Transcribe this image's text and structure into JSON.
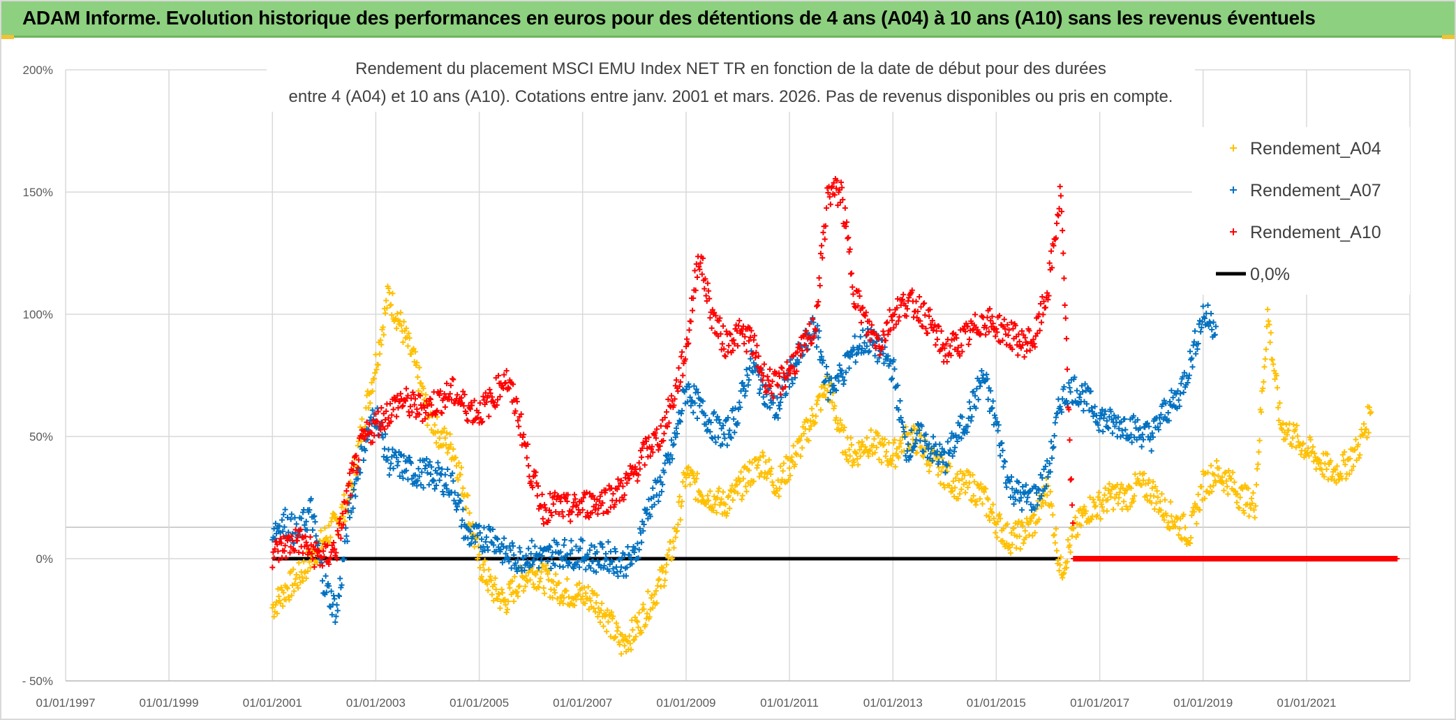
{
  "header": {
    "banner": "ADAM Informe. Evolution historique des performances en euros pour des détentions de 4 ans (A04) à 10 ans (A10) sans les revenus éventuels"
  },
  "colors": {
    "banner_bg": "#8dd07f",
    "accent": "#f1c232",
    "A04": "#ffc000",
    "A07": "#0070c0",
    "A10": "#ff0000",
    "zero_line": "#000000"
  },
  "chart_data": {
    "type": "scatter",
    "title_lines": [
      "Rendement du placement MSCI EMU Index NET TR en fonction de la date de début pour des durées",
      "entre 4 (A04) et 10 ans (A10). Cotations entre janv. 2001 et mars. 2026. Pas de revenus disponibles ou pris en compte."
    ],
    "xlabel": "",
    "ylabel": "",
    "x_ticks": [
      "01/01/1997",
      "01/01/1999",
      "01/01/2001",
      "01/01/2003",
      "01/01/2005",
      "01/01/2007",
      "01/01/2009",
      "01/01/2011",
      "01/01/2013",
      "01/01/2015",
      "01/01/2017",
      "01/01/2019",
      "01/01/2021"
    ],
    "xlim": [
      "1997-01-01",
      "2023-01-01"
    ],
    "y_ticks": [
      "200%",
      "150%",
      "100%",
      "50%",
      "0%",
      "- 50%"
    ],
    "ylim": [
      -50,
      200
    ],
    "grid": true,
    "legend_position": "top-right",
    "legend": [
      "Rendement_A04",
      "Rendement_A07",
      "Rendement_A10",
      "0,0%"
    ],
    "series": [
      {
        "name": "Rendement_A04",
        "color": "#ffc000",
        "points": [
          [
            "2001-01-01",
            -20
          ],
          [
            "2001-04-01",
            -13
          ],
          [
            "2001-07-01",
            -8
          ],
          [
            "2001-10-01",
            0
          ],
          [
            "2002-01-01",
            8
          ],
          [
            "2002-04-01",
            15
          ],
          [
            "2002-07-01",
            25
          ],
          [
            "2002-10-01",
            55
          ],
          [
            "2003-01-01",
            80
          ],
          [
            "2003-04-01",
            108
          ],
          [
            "2003-07-01",
            95
          ],
          [
            "2003-10-01",
            80
          ],
          [
            "2004-01-01",
            60
          ],
          [
            "2004-04-01",
            50
          ],
          [
            "2004-07-01",
            45
          ],
          [
            "2004-10-01",
            25
          ],
          [
            "2005-01-01",
            -2
          ],
          [
            "2005-04-01",
            -12
          ],
          [
            "2005-07-01",
            -18
          ],
          [
            "2005-10-01",
            -10
          ],
          [
            "2006-01-01",
            -5
          ],
          [
            "2006-04-01",
            -8
          ],
          [
            "2006-07-01",
            -12
          ],
          [
            "2006-10-01",
            -14
          ],
          [
            "2007-01-01",
            -15
          ],
          [
            "2007-04-01",
            -17
          ],
          [
            "2007-07-01",
            -25
          ],
          [
            "2007-10-01",
            -35
          ],
          [
            "2008-01-01",
            -30
          ],
          [
            "2008-04-01",
            -20
          ],
          [
            "2008-07-01",
            -10
          ],
          [
            "2008-10-01",
            5
          ],
          [
            "2009-01-01",
            35
          ],
          [
            "2009-04-01",
            28
          ],
          [
            "2009-07-01",
            25
          ],
          [
            "2009-10-01",
            22
          ],
          [
            "2010-01-01",
            28
          ],
          [
            "2010-04-01",
            35
          ],
          [
            "2010-07-01",
            40
          ],
          [
            "2010-10-01",
            30
          ],
          [
            "2011-01-01",
            38
          ],
          [
            "2011-04-01",
            48
          ],
          [
            "2011-07-01",
            60
          ],
          [
            "2011-10-01",
            72
          ],
          [
            "2012-01-01",
            50
          ],
          [
            "2012-04-01",
            42
          ],
          [
            "2012-07-01",
            48
          ],
          [
            "2012-10-01",
            45
          ],
          [
            "2013-01-01",
            42
          ],
          [
            "2013-04-01",
            50
          ],
          [
            "2013-07-01",
            48
          ],
          [
            "2013-10-01",
            40
          ],
          [
            "2014-01-01",
            35
          ],
          [
            "2014-04-01",
            30
          ],
          [
            "2014-07-01",
            30
          ],
          [
            "2014-10-01",
            25
          ],
          [
            "2015-01-01",
            15
          ],
          [
            "2015-04-01",
            8
          ],
          [
            "2015-07-01",
            10
          ],
          [
            "2015-10-01",
            15
          ],
          [
            "2016-01-01",
            30
          ],
          [
            "2016-04-01",
            -5
          ],
          [
            "2016-07-01",
            10
          ],
          [
            "2016-10-01",
            20
          ],
          [
            "2017-01-01",
            22
          ],
          [
            "2017-04-01",
            26
          ],
          [
            "2017-07-01",
            25
          ],
          [
            "2017-10-01",
            30
          ],
          [
            "2018-01-01",
            28
          ],
          [
            "2018-04-01",
            20
          ],
          [
            "2018-07-01",
            15
          ],
          [
            "2018-10-01",
            10
          ],
          [
            "2019-01-01",
            30
          ],
          [
            "2019-04-01",
            35
          ],
          [
            "2019-07-01",
            32
          ],
          [
            "2019-10-01",
            25
          ],
          [
            "2020-01-01",
            22
          ],
          [
            "2020-04-01",
            100
          ],
          [
            "2020-07-01",
            55
          ],
          [
            "2020-10-01",
            50
          ],
          [
            "2021-01-01",
            45
          ],
          [
            "2021-04-01",
            40
          ],
          [
            "2021-07-01",
            35
          ],
          [
            "2021-10-01",
            38
          ],
          [
            "2022-01-01",
            45
          ],
          [
            "2022-04-01",
            60
          ]
        ]
      },
      {
        "name": "Rendement_A07",
        "color": "#0070c0",
        "points": [
          [
            "2001-01-01",
            12
          ],
          [
            "2001-04-01",
            15
          ],
          [
            "2001-07-01",
            10
          ],
          [
            "2001-10-01",
            20
          ],
          [
            "2002-01-01",
            -10
          ],
          [
            "2002-04-01",
            -22
          ],
          [
            "2002-07-01",
            20
          ],
          [
            "2002-10-01",
            45
          ],
          [
            "2003-01-01",
            60
          ],
          [
            "2003-04-01",
            40
          ],
          [
            "2003-07-01",
            38
          ],
          [
            "2003-10-01",
            35
          ],
          [
            "2004-01-01",
            35
          ],
          [
            "2004-04-01",
            33
          ],
          [
            "2004-07-01",
            30
          ],
          [
            "2004-10-01",
            10
          ],
          [
            "2005-01-01",
            8
          ],
          [
            "2005-04-01",
            10
          ],
          [
            "2005-07-01",
            2
          ],
          [
            "2005-10-01",
            0
          ],
          [
            "2006-01-01",
            2
          ],
          [
            "2006-04-01",
            0
          ],
          [
            "2006-07-01",
            3
          ],
          [
            "2006-10-01",
            2
          ],
          [
            "2007-01-01",
            2
          ],
          [
            "2007-04-01",
            0
          ],
          [
            "2007-07-01",
            1
          ],
          [
            "2007-10-01",
            -2
          ],
          [
            "2008-01-01",
            0
          ],
          [
            "2008-04-01",
            20
          ],
          [
            "2008-07-01",
            30
          ],
          [
            "2008-10-01",
            45
          ],
          [
            "2009-01-01",
            70
          ],
          [
            "2009-04-01",
            62
          ],
          [
            "2009-07-01",
            55
          ],
          [
            "2009-10-01",
            50
          ],
          [
            "2010-01-01",
            60
          ],
          [
            "2010-04-01",
            80
          ],
          [
            "2010-07-01",
            70
          ],
          [
            "2010-10-01",
            60
          ],
          [
            "2011-01-01",
            75
          ],
          [
            "2011-04-01",
            85
          ],
          [
            "2011-07-01",
            95
          ],
          [
            "2011-10-01",
            70
          ],
          [
            "2012-01-01",
            75
          ],
          [
            "2012-04-01",
            85
          ],
          [
            "2012-07-01",
            90
          ],
          [
            "2012-10-01",
            85
          ],
          [
            "2013-01-01",
            78
          ],
          [
            "2013-04-01",
            45
          ],
          [
            "2013-07-01",
            50
          ],
          [
            "2013-10-01",
            45
          ],
          [
            "2014-01-01",
            40
          ],
          [
            "2014-04-01",
            50
          ],
          [
            "2014-07-01",
            60
          ],
          [
            "2014-10-01",
            75
          ],
          [
            "2015-01-01",
            55
          ],
          [
            "2015-04-01",
            30
          ],
          [
            "2015-07-01",
            25
          ],
          [
            "2015-10-01",
            25
          ],
          [
            "2016-01-01",
            35
          ],
          [
            "2016-04-01",
            65
          ],
          [
            "2016-07-01",
            70
          ],
          [
            "2016-10-01",
            65
          ],
          [
            "2017-01-01",
            58
          ],
          [
            "2017-04-01",
            55
          ],
          [
            "2017-07-01",
            55
          ],
          [
            "2017-10-01",
            52
          ],
          [
            "2018-01-01",
            50
          ],
          [
            "2018-04-01",
            60
          ],
          [
            "2018-07-01",
            65
          ],
          [
            "2018-10-01",
            80
          ],
          [
            "2019-01-01",
            100
          ],
          [
            "2019-04-01",
            95
          ]
        ]
      },
      {
        "name": "Rendement_A10",
        "color": "#ff0000",
        "points": [
          [
            "2001-01-01",
            2
          ],
          [
            "2001-04-01",
            5
          ],
          [
            "2001-07-01",
            8
          ],
          [
            "2001-10-01",
            3
          ],
          [
            "2002-01-01",
            0
          ],
          [
            "2002-04-01",
            5
          ],
          [
            "2002-07-01",
            30
          ],
          [
            "2002-10-01",
            48
          ],
          [
            "2003-01-01",
            55
          ],
          [
            "2003-04-01",
            60
          ],
          [
            "2003-07-01",
            65
          ],
          [
            "2003-10-01",
            62
          ],
          [
            "2004-01-01",
            62
          ],
          [
            "2004-04-01",
            65
          ],
          [
            "2004-07-01",
            68
          ],
          [
            "2004-10-01",
            62
          ],
          [
            "2005-01-01",
            60
          ],
          [
            "2005-04-01",
            65
          ],
          [
            "2005-07-01",
            75
          ],
          [
            "2005-10-01",
            60
          ],
          [
            "2006-01-01",
            35
          ],
          [
            "2006-04-01",
            20
          ],
          [
            "2006-07-01",
            22
          ],
          [
            "2006-10-01",
            20
          ],
          [
            "2007-01-01",
            22
          ],
          [
            "2007-04-01",
            23
          ],
          [
            "2007-07-01",
            25
          ],
          [
            "2007-10-01",
            28
          ],
          [
            "2008-01-01",
            35
          ],
          [
            "2008-04-01",
            45
          ],
          [
            "2008-07-01",
            50
          ],
          [
            "2008-10-01",
            65
          ],
          [
            "2009-01-01",
            85
          ],
          [
            "2009-04-01",
            125
          ],
          [
            "2009-07-01",
            100
          ],
          [
            "2009-10-01",
            88
          ],
          [
            "2010-01-01",
            92
          ],
          [
            "2010-04-01",
            90
          ],
          [
            "2010-07-01",
            75
          ],
          [
            "2010-10-01",
            70
          ],
          [
            "2011-01-01",
            78
          ],
          [
            "2011-04-01",
            85
          ],
          [
            "2011-07-01",
            95
          ],
          [
            "2011-10-01",
            150
          ],
          [
            "2012-01-01",
            150
          ],
          [
            "2012-04-01",
            110
          ],
          [
            "2012-07-01",
            95
          ],
          [
            "2012-10-01",
            88
          ],
          [
            "2013-01-01",
            100
          ],
          [
            "2013-04-01",
            105
          ],
          [
            "2013-07-01",
            103
          ],
          [
            "2013-10-01",
            95
          ],
          [
            "2014-01-01",
            85
          ],
          [
            "2014-04-01",
            88
          ],
          [
            "2014-07-01",
            92
          ],
          [
            "2014-10-01",
            98
          ],
          [
            "2015-01-01",
            95
          ],
          [
            "2015-04-01",
            92
          ],
          [
            "2015-07-01",
            88
          ],
          [
            "2015-10-01",
            90
          ],
          [
            "2016-01-01",
            110
          ],
          [
            "2016-04-01",
            150
          ],
          [
            "2016-07-01",
            0
          ],
          [
            "2016-10-01",
            0
          ],
          [
            "2017-01-01",
            0
          ],
          [
            "2017-04-01",
            0
          ],
          [
            "2017-07-01",
            0
          ],
          [
            "2017-10-01",
            0
          ],
          [
            "2018-01-01",
            0
          ],
          [
            "2018-04-01",
            0
          ],
          [
            "2018-07-01",
            0
          ],
          [
            "2018-10-01",
            0
          ],
          [
            "2019-01-01",
            0
          ],
          [
            "2019-04-01",
            0
          ],
          [
            "2019-07-01",
            0
          ],
          [
            "2019-10-01",
            0
          ],
          [
            "2020-01-01",
            0
          ],
          [
            "2020-04-01",
            0
          ],
          [
            "2020-07-01",
            0
          ],
          [
            "2020-10-01",
            0
          ],
          [
            "2021-01-01",
            0
          ],
          [
            "2021-04-01",
            0
          ],
          [
            "2021-07-01",
            0
          ],
          [
            "2021-10-01",
            0
          ],
          [
            "2022-01-01",
            0
          ],
          [
            "2022-04-01",
            0
          ],
          [
            "2022-07-01",
            0
          ],
          [
            "2022-10-01",
            0
          ]
        ]
      }
    ],
    "reference_line": {
      "label": "0,0%",
      "y": 0,
      "x_from": "2001-01-01",
      "x_to": "2016-04-01",
      "color": "#000000"
    }
  }
}
